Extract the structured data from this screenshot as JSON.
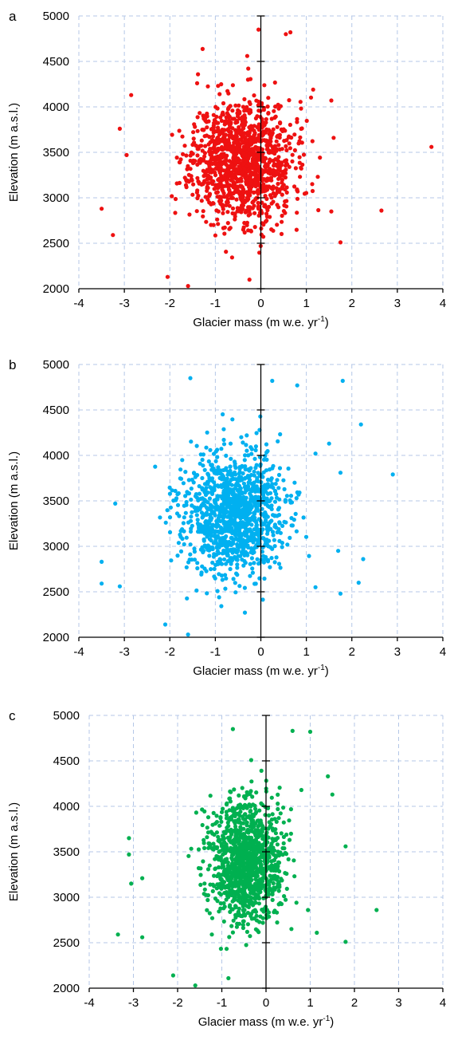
{
  "chart_data": [
    {
      "type": "scatter",
      "panel_label": "a",
      "xlabel": "Glacier mass (m w.e. yr",
      "xlabel_sup": "-1",
      "xlabel_end": ")",
      "ylabel": "Elevation (m a.s.l.)",
      "xlim": [
        -4,
        4
      ],
      "ylim": [
        2000,
        5000
      ],
      "xticks": [
        -4,
        -3,
        -2,
        -1,
        0,
        1,
        2,
        3,
        4
      ],
      "yticks": [
        2000,
        2500,
        3000,
        3500,
        4000,
        4500,
        5000
      ],
      "grid": true,
      "color": "#ee1111",
      "cloud": {
        "center_x": -0.4,
        "center_y": 3400,
        "sd_x": 0.55,
        "sd_y": 330,
        "count": 1300,
        "seed": 11
      },
      "points": [
        {
          "x": 3.75,
          "y": 3560
        },
        {
          "x": 2.65,
          "y": 2860
        },
        {
          "x": 1.75,
          "y": 2510
        },
        {
          "x": -3.5,
          "y": 2880
        },
        {
          "x": -3.25,
          "y": 2590
        },
        {
          "x": -3.1,
          "y": 3760
        },
        {
          "x": -2.85,
          "y": 4130
        },
        {
          "x": -2.95,
          "y": 3470
        },
        {
          "x": 0.65,
          "y": 4820
        },
        {
          "x": 0.55,
          "y": 4800
        },
        {
          "x": -0.05,
          "y": 4850
        },
        {
          "x": -0.3,
          "y": 4560
        },
        {
          "x": -1.6,
          "y": 2030
        },
        {
          "x": -2.05,
          "y": 2130
        },
        {
          "x": -0.25,
          "y": 2100
        },
        {
          "x": 1.55,
          "y": 2850
        },
        {
          "x": 1.15,
          "y": 4190
        },
        {
          "x": 1.55,
          "y": 4070
        },
        {
          "x": -1.4,
          "y": 4260
        },
        {
          "x": 1.6,
          "y": 3660
        }
      ]
    },
    {
      "type": "scatter",
      "panel_label": "b",
      "xlabel": "Glacier mass (m w.e. yr",
      "xlabel_sup": "-1",
      "xlabel_end": ")",
      "ylabel": "Elevation (m a.s.l.)",
      "xlim": [
        -4,
        4
      ],
      "ylim": [
        2000,
        5000
      ],
      "xticks": [
        -4,
        -3,
        -2,
        -1,
        0,
        1,
        2,
        3,
        4
      ],
      "yticks": [
        2000,
        2500,
        3000,
        3500,
        4000,
        4500,
        5000
      ],
      "grid": true,
      "color": "#00b0f0",
      "cloud": {
        "center_x": -0.6,
        "center_y": 3350,
        "sd_x": 0.55,
        "sd_y": 340,
        "count": 1200,
        "seed": 23
      },
      "points": [
        {
          "x": 2.9,
          "y": 3790
        },
        {
          "x": 2.25,
          "y": 2860
        },
        {
          "x": 2.15,
          "y": 2600
        },
        {
          "x": 2.2,
          "y": 4340
        },
        {
          "x": 1.8,
          "y": 4820
        },
        {
          "x": 1.75,
          "y": 2480
        },
        {
          "x": -3.5,
          "y": 2590
        },
        {
          "x": -3.5,
          "y": 2830
        },
        {
          "x": -3.2,
          "y": 3470
        },
        {
          "x": -3.1,
          "y": 2560
        },
        {
          "x": -1.55,
          "y": 4850
        },
        {
          "x": 0.25,
          "y": 4820
        },
        {
          "x": 0.8,
          "y": 4770
        },
        {
          "x": -1.6,
          "y": 2030
        },
        {
          "x": -2.1,
          "y": 2140
        },
        {
          "x": 1.7,
          "y": 2950
        },
        {
          "x": 1.5,
          "y": 4130
        },
        {
          "x": 1.2,
          "y": 4020
        },
        {
          "x": 1.2,
          "y": 2550
        },
        {
          "x": 1.75,
          "y": 3810
        }
      ]
    },
    {
      "type": "scatter",
      "panel_label": "c",
      "xlabel": "Glacier mass (m w.e. yr",
      "xlabel_sup": "-1",
      "xlabel_end": ")",
      "ylabel": "Elevation (m a.s.l.)",
      "xlim": [
        -4,
        4
      ],
      "ylim": [
        2000,
        5000
      ],
      "xticks": [
        -4,
        -3,
        -2,
        -1,
        0,
        1,
        2,
        3,
        4
      ],
      "yticks": [
        2000,
        2500,
        3000,
        3500,
        4000,
        4500,
        5000
      ],
      "grid": true,
      "color": "#00b050",
      "cloud": {
        "center_x": -0.45,
        "center_y": 3400,
        "sd_x": 0.4,
        "sd_y": 330,
        "count": 1200,
        "seed": 37
      },
      "points": [
        {
          "x": 2.5,
          "y": 2860
        },
        {
          "x": 1.8,
          "y": 2510
        },
        {
          "x": 1.8,
          "y": 3560
        },
        {
          "x": 1.4,
          "y": 4330
        },
        {
          "x": 1.5,
          "y": 4130
        },
        {
          "x": 1.0,
          "y": 4820
        },
        {
          "x": 0.6,
          "y": 4830
        },
        {
          "x": -0.75,
          "y": 4850
        },
        {
          "x": -3.35,
          "y": 2590
        },
        {
          "x": -3.1,
          "y": 3650
        },
        {
          "x": -3.1,
          "y": 3470
        },
        {
          "x": -3.05,
          "y": 3150
        },
        {
          "x": -2.8,
          "y": 2560
        },
        {
          "x": -2.8,
          "y": 3210
        },
        {
          "x": -1.6,
          "y": 2030
        },
        {
          "x": -2.1,
          "y": 2140
        },
        {
          "x": 1.15,
          "y": 2610
        },
        {
          "x": 0.95,
          "y": 2860
        },
        {
          "x": 0.8,
          "y": 4180
        },
        {
          "x": -0.85,
          "y": 2110
        }
      ]
    }
  ]
}
